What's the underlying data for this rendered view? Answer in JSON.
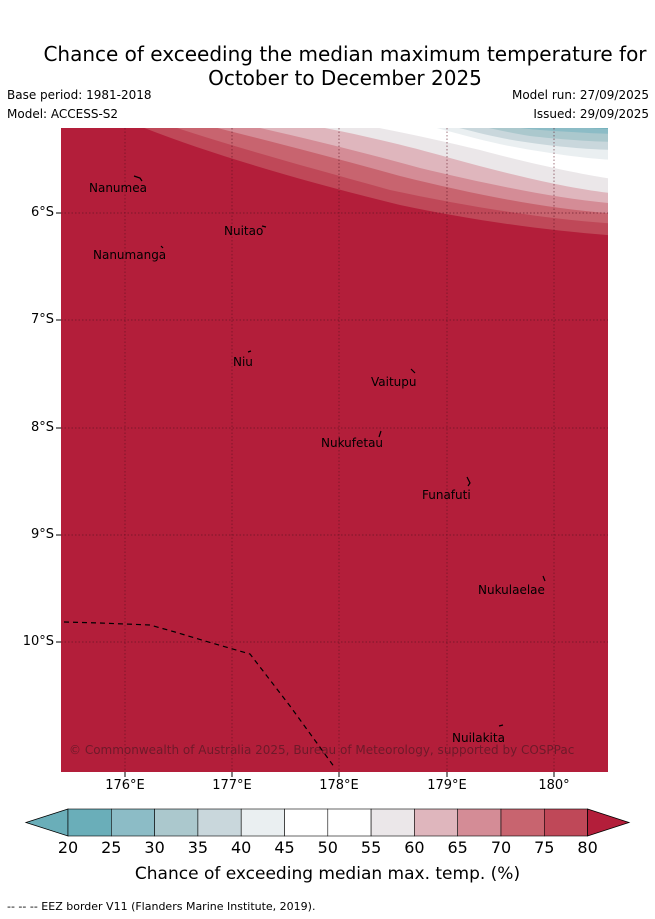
{
  "header": {
    "title_line1": "Chance of exceeding the median maximum temperature for",
    "title_line2": "October to December 2025",
    "base_period": "Base period: 1981-2018",
    "model": "Model: ACCESS-S2",
    "model_run": "Model run: 27/09/2025",
    "issued": "Issued: 29/09/2025"
  },
  "map": {
    "lat_labels": [
      "6°S",
      "7°S",
      "8°S",
      "9°S",
      "10°S"
    ],
    "lon_labels": [
      "176°E",
      "177°E",
      "178°E",
      "179°E",
      "180°"
    ],
    "places": [
      "Nanumea",
      "Nuitao",
      "Nanumanga",
      "Niu",
      "Vaitupu",
      "Nukufetau",
      "Funafuti",
      "Nukulaelae",
      "Nuilakita"
    ],
    "credit": "© Commonwealth of Australia 2025, Bureau of Meteorology, supported by COSPPac",
    "dominant_color": "#b31e3a"
  },
  "colorbar": {
    "ticks": [
      "20",
      "25",
      "30",
      "35",
      "40",
      "45",
      "50",
      "55",
      "60",
      "65",
      "70",
      "75",
      "80"
    ],
    "colors": [
      "#6aaeb9",
      "#8cbcc6",
      "#abc8cd",
      "#c9d7dc",
      "#eaeff1",
      "#ffffff",
      "#ffffff",
      "#ebe7e9",
      "#dfb6bd",
      "#d48c96",
      "#c8646f",
      "#bf4858",
      "#b31e3a"
    ],
    "label": "Chance of exceeding median max. temp. (%)"
  },
  "legend": {
    "eez": "-- -- -- EEZ border V11 (Flanders Marine Institute, 2019)."
  }
}
